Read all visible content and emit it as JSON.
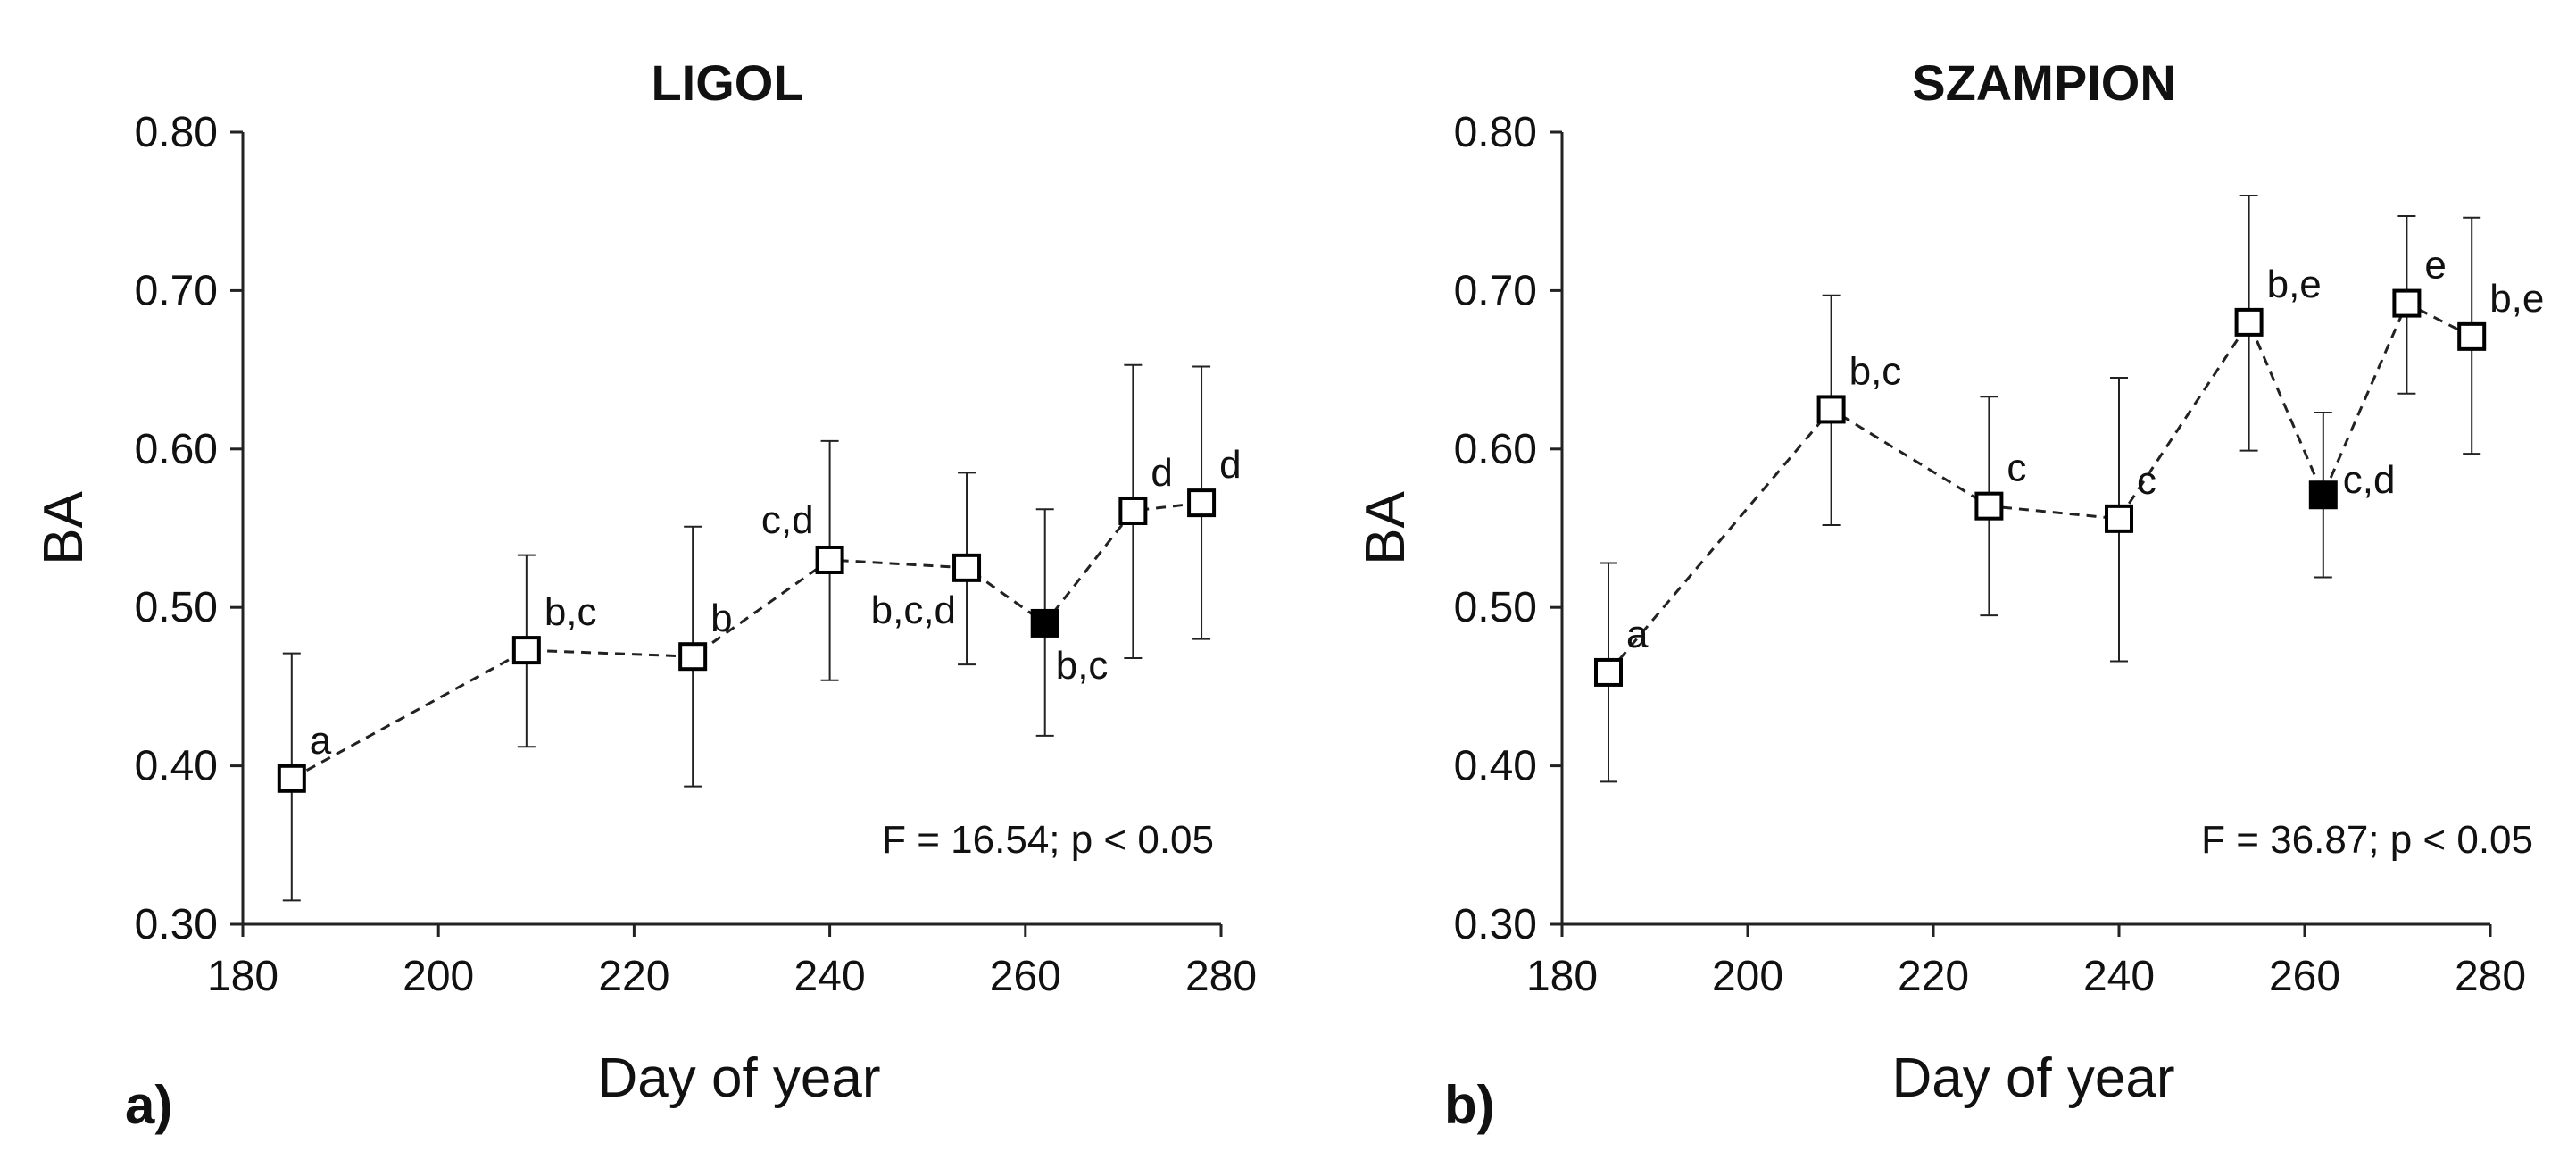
{
  "chart_data": [
    {
      "type": "scatter",
      "panel_label": "a)",
      "title": "LIGOL",
      "xlabel": "Day of year",
      "ylabel": "BA",
      "xlim": [
        180,
        280
      ],
      "ylim": [
        0.3,
        0.8
      ],
      "x_ticks": [
        "180",
        "200",
        "220",
        "240",
        "260",
        "280"
      ],
      "y_ticks": [
        "0.30",
        "0.40",
        "0.50",
        "0.60",
        "0.70",
        "0.80"
      ],
      "annotation": "F = 16.54; p < 0.05",
      "points": [
        {
          "x": 185,
          "y": 0.392,
          "err_low": 0.315,
          "err_high": 0.471,
          "filled": false,
          "label": "a",
          "label_pos": "upper-right"
        },
        {
          "x": 209,
          "y": 0.473,
          "err_low": 0.412,
          "err_high": 0.533,
          "filled": false,
          "label": "b,c",
          "label_pos": "upper-right"
        },
        {
          "x": 226,
          "y": 0.469,
          "err_low": 0.387,
          "err_high": 0.551,
          "filled": false,
          "label": "b",
          "label_pos": "upper-right"
        },
        {
          "x": 240,
          "y": 0.53,
          "err_low": 0.454,
          "err_high": 0.605,
          "filled": false,
          "label": "c,d",
          "label_pos": "upper-left"
        },
        {
          "x": 254,
          "y": 0.525,
          "err_low": 0.464,
          "err_high": 0.585,
          "filled": false,
          "label": "b,c,d",
          "label_pos": "lower-left"
        },
        {
          "x": 262,
          "y": 0.49,
          "err_low": 0.419,
          "err_high": 0.562,
          "filled": true,
          "label": "b,c",
          "label_pos": "lower-right"
        },
        {
          "x": 271,
          "y": 0.561,
          "err_low": 0.468,
          "err_high": 0.653,
          "filled": false,
          "label": "d",
          "label_pos": "upper-right"
        },
        {
          "x": 278,
          "y": 0.566,
          "err_low": 0.48,
          "err_high": 0.652,
          "filled": false,
          "label": "d",
          "label_pos": "upper-right"
        }
      ]
    },
    {
      "type": "scatter",
      "panel_label": "b)",
      "title": "SZAMPION",
      "xlabel": "Day of year",
      "ylabel": "BA",
      "xlim": [
        180,
        280
      ],
      "ylim": [
        0.3,
        0.8
      ],
      "x_ticks": [
        "180",
        "200",
        "220",
        "240",
        "260",
        "280"
      ],
      "y_ticks": [
        "0.30",
        "0.40",
        "0.50",
        "0.60",
        "0.70",
        "0.80"
      ],
      "annotation": "F = 36.87; p < 0.05",
      "points": [
        {
          "x": 185,
          "y": 0.459,
          "err_low": 0.39,
          "err_high": 0.528,
          "filled": false,
          "label": "a",
          "label_pos": "upper-right"
        },
        {
          "x": 209,
          "y": 0.625,
          "err_low": 0.552,
          "err_high": 0.697,
          "filled": false,
          "label": "b,c",
          "label_pos": "upper-right"
        },
        {
          "x": 226,
          "y": 0.564,
          "err_low": 0.495,
          "err_high": 0.633,
          "filled": false,
          "label": "c",
          "label_pos": "upper-right"
        },
        {
          "x": 240,
          "y": 0.556,
          "err_low": 0.466,
          "err_high": 0.645,
          "filled": false,
          "label": "c",
          "label_pos": "upper-right"
        },
        {
          "x": 254,
          "y": 0.68,
          "err_low": 0.599,
          "err_high": 0.76,
          "filled": false,
          "label": "b,e",
          "label_pos": "upper-right"
        },
        {
          "x": 262,
          "y": 0.571,
          "err_low": 0.519,
          "err_high": 0.623,
          "filled": true,
          "label": "c,d",
          "label_pos": "right"
        },
        {
          "x": 271,
          "y": 0.692,
          "err_low": 0.635,
          "err_high": 0.747,
          "filled": false,
          "label": "e",
          "label_pos": "upper-right"
        },
        {
          "x": 278,
          "y": 0.671,
          "err_low": 0.597,
          "err_high": 0.746,
          "filled": false,
          "label": "b,e",
          "label_pos": "upper-right"
        }
      ]
    }
  ]
}
